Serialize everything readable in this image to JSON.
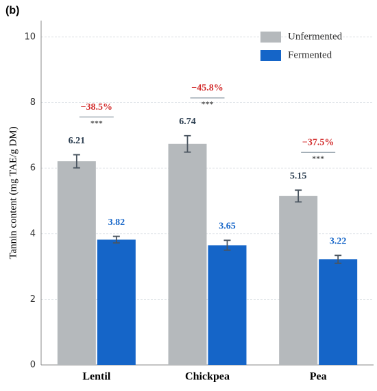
{
  "chart_data": {
    "type": "bar",
    "panel_label": "(b)",
    "ylabel": "Tannin content (mg TAE/g DM)",
    "categories": [
      "Lentil",
      "Chickpea",
      "Pea"
    ],
    "series": [
      {
        "name": "Unfermented",
        "color": "#b5b9bc",
        "label_color": "#2c3e50",
        "values": [
          6.21,
          6.74,
          5.15
        ],
        "errors": [
          0.2,
          0.25,
          0.18
        ]
      },
      {
        "name": "Fermented",
        "color": "#1565c8",
        "label_color": "#1565c8",
        "values": [
          3.82,
          3.65,
          3.22
        ],
        "errors": [
          0.1,
          0.15,
          0.12
        ]
      }
    ],
    "change_labels": [
      "−38.5%",
      "−45.8%",
      "−37.5%"
    ],
    "significance": [
      "***",
      "***",
      "***"
    ],
    "ylim": [
      0,
      10.5
    ],
    "yticks": [
      0,
      2,
      4,
      6,
      8,
      10
    ],
    "grid": true,
    "legend": "upper right"
  }
}
